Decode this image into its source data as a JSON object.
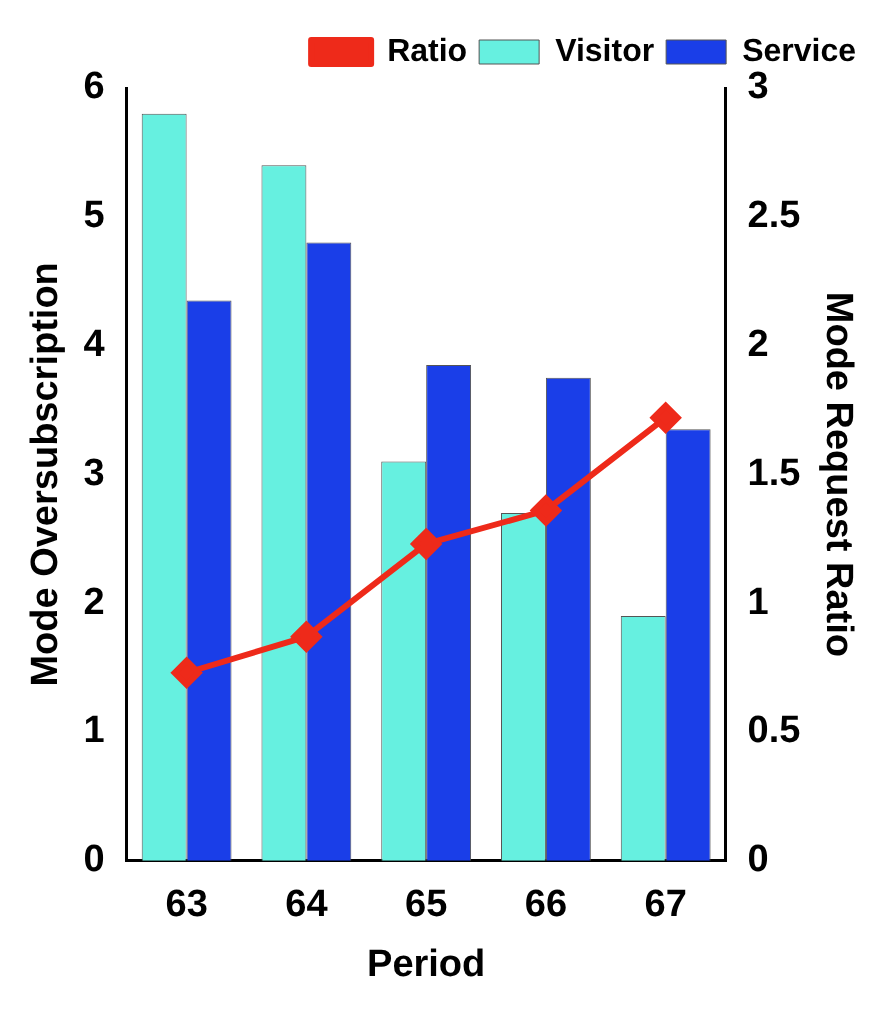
{
  "chart_data": {
    "type": "bar",
    "categories": [
      "63",
      "64",
      "65",
      "66",
      "67"
    ],
    "xlabel": "Period",
    "ylabel": "Mode Oversubscription",
    "y2label": "Mode Request Ratio",
    "series": [
      {
        "name": "Visitor",
        "color": "#66f0e0",
        "values": [
          5.8,
          5.4,
          3.1,
          2.7,
          1.9
        ]
      },
      {
        "name": "Service",
        "color": "#1a3ee8",
        "values": [
          4.35,
          4.8,
          3.85,
          3.75,
          3.35
        ]
      },
      {
        "name": "Ratio",
        "type": "line",
        "axis": "y2",
        "color": "#ee2a1a",
        "marker": "diamond",
        "values": [
          0.73,
          0.87,
          1.23,
          1.36,
          1.72
        ]
      }
    ],
    "ylim": [
      0,
      6
    ],
    "yticks": [
      0,
      1,
      2,
      3,
      4,
      5,
      6
    ],
    "y2lim": [
      0,
      3
    ],
    "y2ticks": [
      0,
      0.5,
      1,
      1.5,
      2,
      2.5,
      3
    ],
    "legend": "top right",
    "grid": false
  }
}
